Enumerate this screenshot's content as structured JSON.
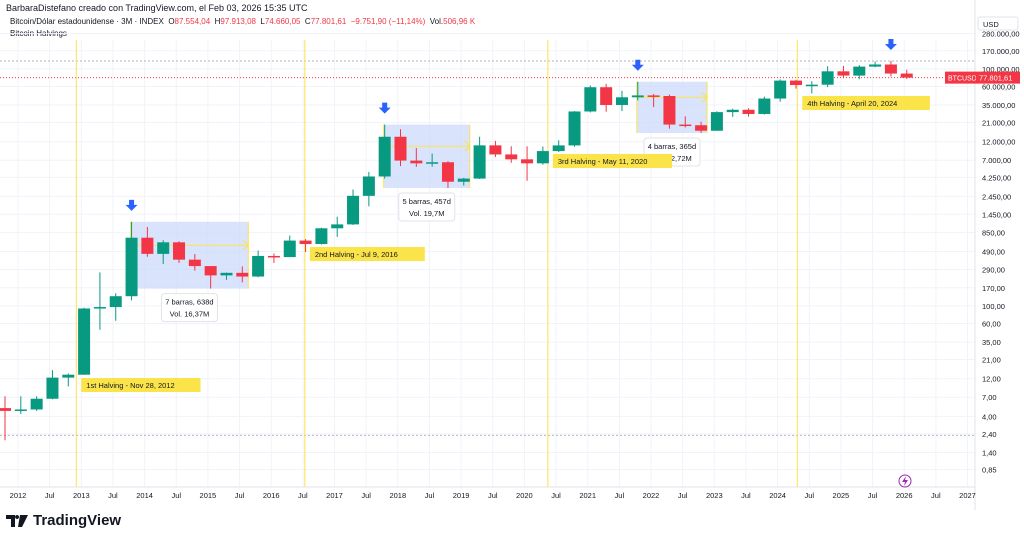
{
  "header": {
    "credit": "BarbaraDistefano creado con TradingView.com, el Feb 03, 2026 15:35 UTC",
    "symbol": "Bitcoin/Dólar estadounidense · 3M · INDEX",
    "o_label": "O",
    "o": "87.554,04",
    "h_label": "H",
    "h": "97.913,08",
    "l_label": "L",
    "l": "74.660,05",
    "c_label": "C",
    "c": "77.801,61",
    "change": "−9.751,90 (−11,14%)",
    "vol_label": "Vol.",
    "vol": "506,96 K",
    "indicator": "Bitcoin Halvings"
  },
  "footer": {
    "logo": "TradingView"
  },
  "colors": {
    "up": "#089981",
    "down": "#f23645",
    "halving": "#fbe34a",
    "range_fill": "#c9d8fb",
    "arrow": "#2962ff"
  },
  "chart_data": {
    "type": "candlestick",
    "timeframe": "3M",
    "scale": "log",
    "currency": "USD",
    "last_price_label": "BTCUSD",
    "last_price": "77.801,61",
    "y_ticks": [
      "280.000,00",
      "170.000,00",
      "100.000,00",
      "60.000,00",
      "35.000,00",
      "21.000,00",
      "12.000,00",
      "7.000,00",
      "4.250,00",
      "2.450,00",
      "1.450,00",
      "850,00",
      "490,00",
      "290,00",
      "170,00",
      "100,00",
      "60,00",
      "35,00",
      "21,00",
      "12,00",
      "7,00",
      "4,00",
      "2,40",
      "1,40",
      "0,85"
    ],
    "y_tick_values": [
      280000,
      170000,
      100000,
      60000,
      35000,
      21000,
      12000,
      7000,
      4250,
      2450,
      1450,
      850,
      490,
      290,
      170,
      100,
      60,
      35,
      21,
      12,
      7,
      4,
      2.4,
      1.4,
      0.85
    ],
    "x_ticks": [
      "2012",
      "Jul",
      "2013",
      "Jul",
      "2014",
      "Jul",
      "2015",
      "Jul",
      "2016",
      "Jul",
      "2017",
      "Jul",
      "2018",
      "Jul",
      "2019",
      "Jul",
      "2020",
      "Jul",
      "2021",
      "Jul",
      "2022",
      "Jul",
      "2023",
      "Jul",
      "2024",
      "Jul",
      "2025",
      "Jul",
      "2026",
      "Jul",
      "2027"
    ],
    "first_quarter": "2011-Q4",
    "ohlc": [
      [
        5.1,
        7.2,
        2.0,
        4.7
      ],
      [
        4.7,
        7.2,
        4.3,
        4.9
      ],
      [
        4.9,
        7.2,
        4.7,
        6.7
      ],
      [
        6.7,
        15.4,
        6.6,
        12.4
      ],
      [
        12.4,
        14,
        9.6,
        13.5
      ],
      [
        13.5,
        95,
        13.4,
        93
      ],
      [
        93,
        266,
        50,
        97
      ],
      [
        97,
        145,
        65,
        133
      ],
      [
        133,
        1163,
        118,
        732
      ],
      [
        732,
        1000,
        420,
        457
      ],
      [
        457,
        680,
        340,
        640
      ],
      [
        640,
        660,
        350,
        386
      ],
      [
        386,
        455,
        280,
        320
      ],
      [
        320,
        320,
        166,
        244
      ],
      [
        244,
        265,
        214,
        263
      ],
      [
        263,
        317,
        199,
        236
      ],
      [
        236,
        504,
        231,
        430
      ],
      [
        430,
        462,
        350,
        416
      ],
      [
        416,
        780,
        416,
        673
      ],
      [
        673,
        703,
        480,
        609
      ],
      [
        609,
        980,
        600,
        963
      ],
      [
        963,
        1350,
        750,
        1079
      ],
      [
        1079,
        2980,
        1062,
        2480
      ],
      [
        2480,
        4980,
        1830,
        4360
      ],
      [
        4360,
        19800,
        4100,
        13880
      ],
      [
        13880,
        17300,
        5900,
        6930
      ],
      [
        6930,
        9990,
        5770,
        6400
      ],
      [
        6400,
        8500,
        5800,
        6600
      ],
      [
        6600,
        6800,
        3120,
        3740
      ],
      [
        3740,
        4180,
        3350,
        4100
      ],
      [
        4100,
        13880,
        4050,
        10800
      ],
      [
        10800,
        12300,
        7700,
        8290
      ],
      [
        8290,
        10540,
        6500,
        7190
      ],
      [
        7190,
        10500,
        3850,
        6400
      ],
      [
        6400,
        10430,
        6150,
        9140
      ],
      [
        9140,
        12480,
        8900,
        10780
      ],
      [
        10780,
        29300,
        10400,
        28990
      ],
      [
        28990,
        61800,
        28200,
        58800
      ],
      [
        58800,
        64850,
        28800,
        35040
      ],
      [
        35040,
        52900,
        29300,
        43830
      ],
      [
        43830,
        69000,
        40000,
        46300
      ],
      [
        46300,
        48200,
        32900,
        45500
      ],
      [
        45500,
        47450,
        17600,
        19800
      ],
      [
        19800,
        25200,
        18200,
        19420
      ],
      [
        19420,
        21480,
        15480,
        16540
      ],
      [
        16540,
        29200,
        16500,
        28460
      ],
      [
        28460,
        31400,
        24750,
        30470
      ],
      [
        30470,
        31800,
        24900,
        26970
      ],
      [
        26970,
        44700,
        26500,
        42280
      ],
      [
        42280,
        73800,
        38500,
        71300
      ],
      [
        71300,
        72800,
        56500,
        62680
      ],
      [
        62680,
        70000,
        49000,
        63300
      ],
      [
        63300,
        108350,
        58900,
        93430
      ],
      [
        93430,
        109600,
        76600,
        82550
      ],
      [
        82550,
        111900,
        74400,
        107200
      ],
      [
        107200,
        124500,
        105300,
        114050
      ],
      [
        114050,
        126200,
        80600,
        87550
      ],
      [
        87554,
        97913,
        74660,
        77801
      ]
    ],
    "halvings": [
      {
        "label": "1st Halving - Nov 28, 2012",
        "year": 2012.91
      },
      {
        "label": "2nd Halving - Jul 9, 2016",
        "year": 2016.52
      },
      {
        "label": "3rd Halving - May 11, 2020",
        "year": 2020.36
      },
      {
        "label": "4th Halving - April 20, 2024",
        "year": 2024.3
      }
    ],
    "ranges": [
      {
        "from": 8,
        "to": 15,
        "high": 1163,
        "low": 166,
        "label": "7 barras, 638d",
        "vol": "Vol. 16,37M"
      },
      {
        "from": 24,
        "to": 29,
        "high": 19800,
        "low": 3120,
        "label": "5 barras, 457d",
        "vol": "Vol. 19,7M"
      },
      {
        "from": 40,
        "to": 44,
        "high": 69000,
        "low": 15480,
        "label": "4 barras, 365d",
        "vol": "Vol. 12,72M"
      }
    ],
    "arrows_at": [
      8,
      24,
      40,
      56
    ],
    "h_lines": [
      126200,
      2.3
    ]
  }
}
